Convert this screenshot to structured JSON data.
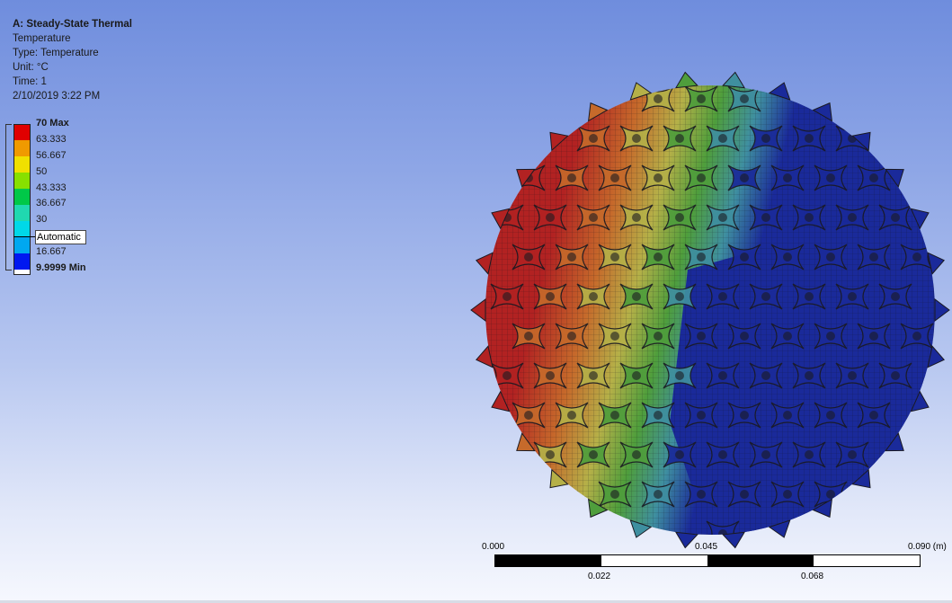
{
  "result": {
    "title": "A: Steady-State Thermal",
    "name": "Temperature",
    "type": "Type: Temperature",
    "unit": "Unit: °C",
    "time": "Time: 1",
    "date": "2/10/2019 3:22 PM"
  },
  "legend": {
    "max_label": "70 Max",
    "min_label": "9.9999 Min",
    "levels": [
      "63.333",
      "56.667",
      "50",
      "43.333",
      "36.667",
      "30",
      "16.667"
    ],
    "probe_label": "Automatic",
    "colors": [
      "#e00000",
      "#f09a00",
      "#f0e000",
      "#88e000",
      "#00c848",
      "#20d8b0",
      "#00d8e8",
      "#00a8f0",
      "#0018f0",
      "#ffffff"
    ]
  },
  "model": {
    "colors": {
      "red": "#b22222",
      "orange": "#c66a2b",
      "yellow": "#b5b048",
      "green": "#4f9e3c",
      "teal": "#3f8fa0",
      "blue": "#1a2a9a",
      "edge": "#1a1a22"
    }
  },
  "scale_bar": {
    "labels_top": [
      "0.000",
      "0.045",
      "0.090 (m)"
    ],
    "labels_bottom": [
      "0.022",
      "0.068"
    ]
  }
}
